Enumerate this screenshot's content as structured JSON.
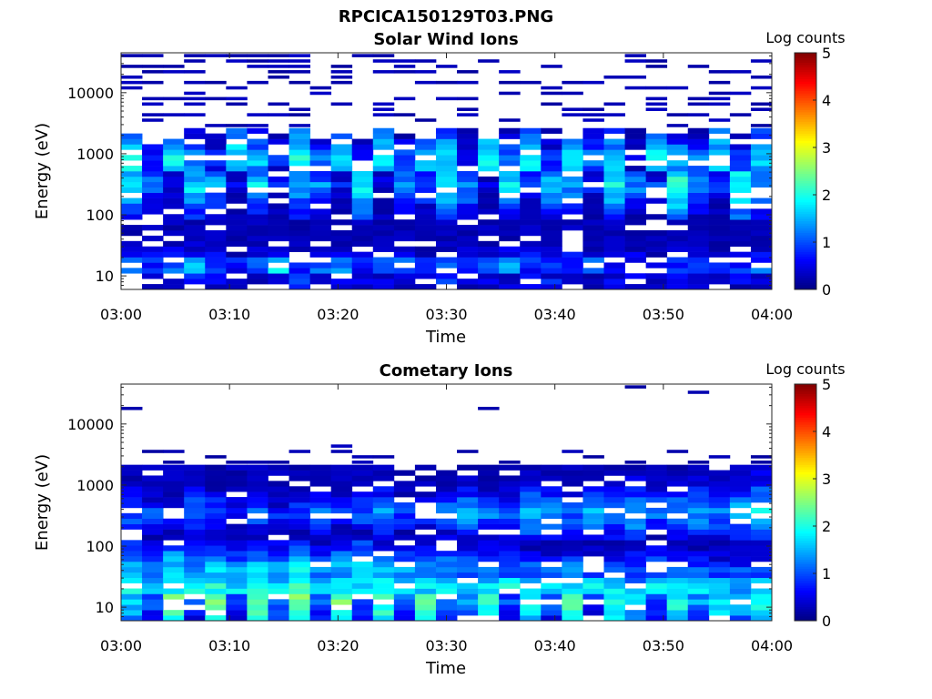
{
  "figure": {
    "suptitle": "RPCICA150129T03.PNG"
  },
  "chart_data": [
    {
      "type": "heatmap",
      "title": "Solar Wind Ions",
      "xlabel": "Time",
      "ylabel": "Energy (eV)",
      "x_ticks": [
        "03:00",
        "03:10",
        "03:20",
        "03:30",
        "03:40",
        "03:50",
        "04:00"
      ],
      "x_range": [
        "03:00",
        "04:00"
      ],
      "y_scale": "log",
      "y_ticks": [
        10,
        100,
        1000,
        10000
      ],
      "y_tick_labels": [
        "10",
        "100",
        "1000",
        "10000"
      ],
      "y_range": [
        6,
        45000
      ],
      "colorbar": {
        "label": "Log counts",
        "range": [
          0,
          5
        ],
        "ticks": [
          "0",
          "1",
          "2",
          "3",
          "4",
          "5"
        ],
        "colormap": "jet"
      },
      "time_bins": 31,
      "energy_bins": [
        {
          "energy_eV": 8.5,
          "row_values": [
            0.7,
            0.4,
            0.5,
            0.9,
            0.6,
            0.4,
            0.5,
            0.7,
            0.8,
            0.6,
            0.5,
            0.4,
            0.7,
            0.6,
            0.5,
            0.8,
            0.6,
            0.4,
            0.5,
            0.6,
            0.7,
            0.5,
            0.4,
            0.6,
            0.5,
            0.4,
            0.6,
            0.5,
            0.4,
            0.5,
            0.6
          ]
        },
        {
          "energy_eV": 12,
          "row_values": [
            1.3,
            0.8,
            1.0,
            1.8,
            1.2,
            0.7,
            1.1,
            1.9,
            0.9,
            1.0,
            1.6,
            0.8,
            1.2,
            1.1,
            0.7,
            1.4,
            0.9,
            1.2,
            1.5,
            0.8,
            1.1,
            0.9,
            1.3,
            0.7,
            1.0,
            0.6,
            0.9,
            0.8,
            1.0,
            0.9,
            1.1
          ]
        },
        {
          "energy_eV": 16,
          "row_values": [
            1.0,
            0.9,
            1.2,
            1.5,
            1.1,
            0.8,
            1.0,
            1.7,
            1.1,
            0.9,
            1.4,
            0.7,
            1.0,
            1.2,
            0.8,
            1.3,
            1.0,
            1.1,
            1.4,
            0.9,
            1.0,
            0.8,
            1.2,
            0.8,
            0.9,
            0.7,
            0.8,
            0.9,
            1.0,
            0.8,
            1.0
          ]
        },
        {
          "energy_eV": 22,
          "row_values": [
            0.6,
            0.5,
            0.7,
            0.6,
            0.5,
            0.4,
            0.6,
            0.7,
            0.5,
            0.4,
            0.6,
            0.5,
            0.5,
            0.6,
            0.4,
            0.5,
            0.5,
            0.4,
            0.6,
            0.5,
            0.4,
            0.5,
            0.6,
            0.4,
            0.5,
            0.4,
            0.5,
            0.4,
            0.5,
            0.4,
            0.5
          ]
        },
        {
          "energy_eV": 300,
          "row_values": [
            1.9,
            1.2,
            0.6,
            1.8,
            1.5,
            0.5,
            1.7,
            0.9,
            1.6,
            1.3,
            0.7,
            1.9,
            0.6,
            1.5,
            1.2,
            2.0,
            1.4,
            0.7,
            1.8,
            1.1,
            1.6,
            1.5,
            0.8,
            1.9,
            1.3,
            0.9,
            2.2,
            1.4,
            0.8,
            2.1,
            1.5
          ]
        },
        {
          "energy_eV": 800,
          "row_values": [
            2.1,
            1.0,
            1.9,
            1.4,
            0.8,
            2.0,
            1.6,
            0.9,
            2.1,
            1.2,
            1.8,
            0.7,
            2.0,
            1.1,
            1.7,
            1.9,
            0.8,
            2.1,
            1.3,
            1.9,
            0.9,
            2.0,
            1.4,
            1.8,
            0.7,
            2.1,
            1.5,
            1.2,
            2.0,
            0.9,
            1.8
          ]
        }
      ]
    },
    {
      "type": "heatmap",
      "title": "Cometary Ions",
      "xlabel": "Time",
      "ylabel": "Energy (eV)",
      "x_ticks": [
        "03:00",
        "03:10",
        "03:20",
        "03:30",
        "03:40",
        "03:50",
        "04:00"
      ],
      "x_range": [
        "03:00",
        "04:00"
      ],
      "y_scale": "log",
      "y_ticks": [
        10,
        100,
        1000,
        10000
      ],
      "y_tick_labels": [
        "10",
        "100",
        "1000",
        "10000"
      ],
      "y_range": [
        6,
        45000
      ],
      "colorbar": {
        "label": "Log counts",
        "range": [
          0,
          5
        ],
        "ticks": [
          "0",
          "1",
          "2",
          "3",
          "4",
          "5"
        ],
        "colormap": "jet"
      },
      "time_bins": 31,
      "energy_bins": [
        {
          "energy_eV": 12,
          "row_values": [
            1.8,
            1.0,
            2.6,
            1.2,
            2.3,
            1.0,
            2.5,
            1.3,
            2.6,
            1.1,
            2.4,
            1.0,
            2.3,
            1.2,
            2.6,
            1.1,
            1.4,
            2.3,
            1.0,
            2.2,
            1.2,
            2.4,
            1.0,
            2.2,
            1.8,
            1.0,
            2.1,
            1.4,
            1.9,
            1.6,
            2.0
          ]
        },
        {
          "energy_eV": 20,
          "row_values": [
            2.2,
            1.8,
            2.0,
            1.9,
            2.1,
            1.8,
            2.0,
            1.9,
            2.1,
            1.7,
            2.0,
            1.8,
            2.1,
            1.9,
            1.8,
            2.0,
            1.7,
            1.9,
            2.0,
            1.8,
            1.9,
            1.7,
            1.8,
            1.9,
            1.6,
            1.8,
            1.7,
            1.8,
            1.7,
            1.6,
            1.7
          ]
        },
        {
          "energy_eV": 40,
          "row_values": [
            1.7,
            1.4,
            1.8,
            1.5,
            1.6,
            1.4,
            1.7,
            1.5,
            1.9,
            1.4,
            1.6,
            1.8,
            1.5,
            1.4,
            1.3,
            1.5,
            1.2,
            1.4,
            1.3,
            1.2,
            1.1,
            1.3,
            1.2,
            1.0,
            1.1,
            1.2,
            1.0,
            1.1,
            0.9,
            1.0,
            1.1
          ]
        },
        {
          "energy_eV": 350,
          "row_values": [
            1.2,
            1.0,
            0.8,
            1.3,
            1.1,
            0.9,
            1.2,
            0.8,
            1.0,
            1.3,
            0.9,
            1.1,
            1.4,
            1.0,
            0.9,
            1.2,
            1.5,
            1.3,
            1.1,
            1.6,
            1.4,
            1.2,
            1.5,
            1.3,
            1.6,
            1.2,
            1.4,
            1.5,
            1.3,
            1.6,
            1.8
          ]
        }
      ]
    }
  ]
}
